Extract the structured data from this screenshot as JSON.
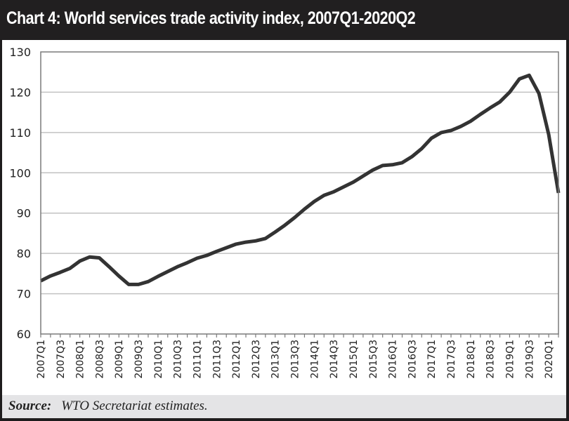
{
  "header": {
    "title": "Chart 4: World services trade activity index, 2007Q1-2020Q2"
  },
  "footer": {
    "source_label": "Source:",
    "source_text": "WTO Secretariat estimates."
  },
  "colors": {
    "frame": "#211f20",
    "line": "#333333",
    "grid": "#c2c2c2",
    "footer_bg": "#e4e4e6"
  },
  "chart_data": {
    "type": "line",
    "title": "Chart 4: World services trade activity index, 2007Q1-2020Q2",
    "xlabel": "",
    "ylabel": "",
    "ylim": [
      60,
      130
    ],
    "yticks": [
      60,
      70,
      80,
      90,
      100,
      110,
      120,
      130
    ],
    "grid": true,
    "legend": "none",
    "x": [
      "2007Q1",
      "2007Q2",
      "2007Q3",
      "2007Q4",
      "2008Q1",
      "2008Q2",
      "2008Q3",
      "2008Q4",
      "2009Q1",
      "2009Q2",
      "2009Q3",
      "2009Q4",
      "2010Q1",
      "2010Q2",
      "2010Q3",
      "2010Q4",
      "2011Q1",
      "2011Q2",
      "2011Q3",
      "2011Q4",
      "2012Q1",
      "2012Q2",
      "2012Q3",
      "2012Q4",
      "2013Q1",
      "2013Q2",
      "2013Q3",
      "2013Q4",
      "2014Q1",
      "2014Q2",
      "2014Q3",
      "2014Q4",
      "2015Q1",
      "2015Q2",
      "2015Q3",
      "2015Q4",
      "2016Q1",
      "2016Q2",
      "2016Q3",
      "2016Q4",
      "2017Q1",
      "2017Q2",
      "2017Q3",
      "2017Q4",
      "2018Q1",
      "2018Q2",
      "2018Q3",
      "2018Q4",
      "2019Q1",
      "2019Q2",
      "2019Q3",
      "2019Q4",
      "2020Q1",
      "2020Q2"
    ],
    "xtick_labels": [
      "2007Q1",
      "2007Q3",
      "2008Q1",
      "2008Q3",
      "2009Q1",
      "2009Q3",
      "2010Q1",
      "2010Q3",
      "2011Q1",
      "2011Q3",
      "2012Q1",
      "2012Q3",
      "2013Q1",
      "2013Q3",
      "2014Q1",
      "2014Q3",
      "2015Q1",
      "2015Q3",
      "2016Q1",
      "2016Q3",
      "2017Q1",
      "2017Q3",
      "2018Q1",
      "2018Q3",
      "2019Q1",
      "2019Q3",
      "2020Q1"
    ],
    "series": [
      {
        "name": "World services trade activity index",
        "values": [
          73.2,
          74.4,
          75.3,
          76.3,
          78.1,
          79.1,
          78.9,
          76.7,
          74.4,
          72.3,
          72.3,
          73.0,
          74.3,
          75.5,
          76.7,
          77.7,
          78.8,
          79.5,
          80.5,
          81.4,
          82.3,
          82.8,
          83.1,
          83.7,
          85.3,
          87.0,
          88.9,
          91.0,
          92.9,
          94.4,
          95.3,
          96.5,
          97.7,
          99.2,
          100.7,
          101.8,
          102.0,
          102.5,
          104.0,
          106.0,
          108.6,
          110.0,
          110.5,
          111.5,
          112.8,
          114.5,
          116.1,
          117.6,
          120.0,
          123.3,
          124.2,
          119.7,
          109.5,
          95.0
        ]
      }
    ]
  }
}
